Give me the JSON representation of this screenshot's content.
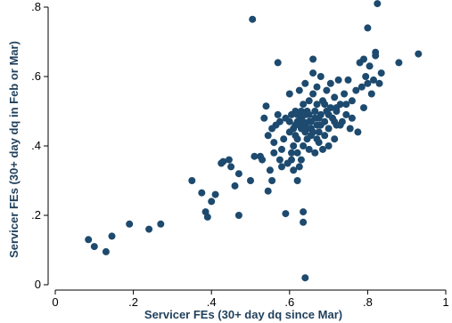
{
  "chart_data": {
    "type": "scatter",
    "title": "",
    "xlabel": "Servicer FEs (30+ day dq since Mar)",
    "ylabel": "Servicer FEs (30+ day dq in Feb or Mar)",
    "xlim": [
      0,
      1
    ],
    "ylim": [
      0,
      0.8
    ],
    "x_ticks": [
      0,
      0.2,
      0.4,
      0.6,
      0.8,
      1
    ],
    "x_tick_labels": [
      "0",
      ".2",
      ".4",
      ".6",
      ".8",
      "1"
    ],
    "y_ticks": [
      0,
      0.2,
      0.4,
      0.6,
      0.8
    ],
    "y_tick_labels": [
      "0",
      ".2",
      ".4",
      ".6",
      ".8"
    ],
    "grid": false,
    "legend": "none",
    "marker_color": "#1d4a6e",
    "series": [
      {
        "points": [
          [
            0.085,
            0.13
          ],
          [
            0.1,
            0.11
          ],
          [
            0.13,
            0.095
          ],
          [
            0.145,
            0.14
          ],
          [
            0.19,
            0.175
          ],
          [
            0.24,
            0.16
          ],
          [
            0.27,
            0.175
          ],
          [
            0.35,
            0.3
          ],
          [
            0.375,
            0.265
          ],
          [
            0.385,
            0.21
          ],
          [
            0.39,
            0.195
          ],
          [
            0.4,
            0.24
          ],
          [
            0.41,
            0.26
          ],
          [
            0.47,
            0.2
          ],
          [
            0.425,
            0.35
          ],
          [
            0.43,
            0.355
          ],
          [
            0.445,
            0.36
          ],
          [
            0.45,
            0.34
          ],
          [
            0.47,
            0.32
          ],
          [
            0.46,
            0.285
          ],
          [
            0.5,
            0.3
          ],
          [
            0.505,
            0.765
          ],
          [
            0.51,
            0.37
          ],
          [
            0.525,
            0.37
          ],
          [
            0.53,
            0.36
          ],
          [
            0.54,
            0.515
          ],
          [
            0.545,
            0.27
          ],
          [
            0.55,
            0.33
          ],
          [
            0.555,
            0.3
          ],
          [
            0.56,
            0.38
          ],
          [
            0.565,
            0.46
          ],
          [
            0.57,
            0.49
          ],
          [
            0.57,
            0.64
          ],
          [
            0.575,
            0.36
          ],
          [
            0.58,
            0.34
          ],
          [
            0.585,
            0.42
          ],
          [
            0.59,
            0.48
          ],
          [
            0.59,
            0.205
          ],
          [
            0.6,
            0.55
          ],
          [
            0.6,
            0.44
          ],
          [
            0.605,
            0.36
          ],
          [
            0.605,
            0.38
          ],
          [
            0.61,
            0.4
          ],
          [
            0.61,
            0.33
          ],
          [
            0.615,
            0.46
          ],
          [
            0.615,
            0.5
          ],
          [
            0.62,
            0.3
          ],
          [
            0.62,
            0.42
          ],
          [
            0.62,
            0.47
          ],
          [
            0.625,
            0.56
          ],
          [
            0.625,
            0.34
          ],
          [
            0.63,
            0.36
          ],
          [
            0.63,
            0.45
          ],
          [
            0.63,
            0.48
          ],
          [
            0.635,
            0.52
          ],
          [
            0.635,
            0.4
          ],
          [
            0.635,
            0.21
          ],
          [
            0.635,
            0.18
          ],
          [
            0.64,
            0.58
          ],
          [
            0.64,
            0.44
          ],
          [
            0.64,
            0.46
          ],
          [
            0.645,
            0.5
          ],
          [
            0.645,
            0.42
          ],
          [
            0.65,
            0.47
          ],
          [
            0.65,
            0.49
          ],
          [
            0.65,
            0.53
          ],
          [
            0.655,
            0.45
          ],
          [
            0.655,
            0.43
          ],
          [
            0.66,
            0.55
          ],
          [
            0.66,
            0.61
          ],
          [
            0.66,
            0.65
          ],
          [
            0.665,
            0.48
          ],
          [
            0.665,
            0.38
          ],
          [
            0.67,
            0.46
          ],
          [
            0.67,
            0.52
          ],
          [
            0.67,
            0.57
          ],
          [
            0.675,
            0.44
          ],
          [
            0.675,
            0.41
          ],
          [
            0.68,
            0.49
          ],
          [
            0.68,
            0.6
          ],
          [
            0.685,
            0.53
          ],
          [
            0.685,
            0.39
          ],
          [
            0.69,
            0.47
          ],
          [
            0.69,
            0.43
          ],
          [
            0.695,
            0.5
          ],
          [
            0.695,
            0.56
          ],
          [
            0.7,
            0.45
          ],
          [
            0.7,
            0.4
          ],
          [
            0.705,
            0.51
          ],
          [
            0.705,
            0.58
          ],
          [
            0.71,
            0.48
          ],
          [
            0.715,
            0.42
          ],
          [
            0.715,
            0.54
          ],
          [
            0.72,
            0.5
          ],
          [
            0.72,
            0.46
          ],
          [
            0.725,
            0.59
          ],
          [
            0.73,
            0.52
          ],
          [
            0.735,
            0.47
          ],
          [
            0.74,
            0.55
          ],
          [
            0.745,
            0.49
          ],
          [
            0.75,
            0.59
          ],
          [
            0.755,
            0.45
          ],
          [
            0.76,
            0.53
          ],
          [
            0.77,
            0.56
          ],
          [
            0.775,
            0.44
          ],
          [
            0.78,
            0.64
          ],
          [
            0.785,
            0.57
          ],
          [
            0.79,
            0.65
          ],
          [
            0.79,
            0.51
          ],
          [
            0.795,
            0.6
          ],
          [
            0.8,
            0.58
          ],
          [
            0.8,
            0.74
          ],
          [
            0.805,
            0.63
          ],
          [
            0.81,
            0.55
          ],
          [
            0.815,
            0.59
          ],
          [
            0.82,
            0.67
          ],
          [
            0.82,
            0.66
          ],
          [
            0.825,
            0.81
          ],
          [
            0.83,
            0.58
          ],
          [
            0.835,
            0.61
          ],
          [
            0.88,
            0.64
          ],
          [
            0.93,
            0.665
          ],
          [
            0.64,
            0.02
          ],
          [
            0.535,
            0.48
          ],
          [
            0.545,
            0.43
          ],
          [
            0.555,
            0.45
          ],
          [
            0.56,
            0.41
          ],
          [
            0.575,
            0.47
          ],
          [
            0.58,
            0.39
          ],
          [
            0.595,
            0.35
          ],
          [
            0.6,
            0.47
          ],
          [
            0.605,
            0.49
          ],
          [
            0.61,
            0.45
          ],
          [
            0.615,
            0.43
          ],
          [
            0.62,
            0.49
          ],
          [
            0.625,
            0.46
          ],
          [
            0.63,
            0.5
          ],
          [
            0.635,
            0.47
          ],
          [
            0.64,
            0.49
          ],
          [
            0.645,
            0.45
          ],
          [
            0.655,
            0.47
          ],
          [
            0.66,
            0.44
          ],
          [
            0.665,
            0.5
          ],
          [
            0.675,
            0.48
          ],
          [
            0.68,
            0.46
          ],
          [
            0.69,
            0.52
          ],
          [
            0.7,
            0.49
          ],
          [
            0.715,
            0.47
          ],
          [
            0.73,
            0.46
          ],
          [
            0.76,
            0.48
          ],
          [
            0.72,
            0.51
          ],
          [
            0.745,
            0.52
          ],
          [
            0.65,
            0.39
          ],
          [
            0.62,
            0.38
          ],
          [
            0.67,
            0.42
          ]
        ]
      }
    ]
  }
}
